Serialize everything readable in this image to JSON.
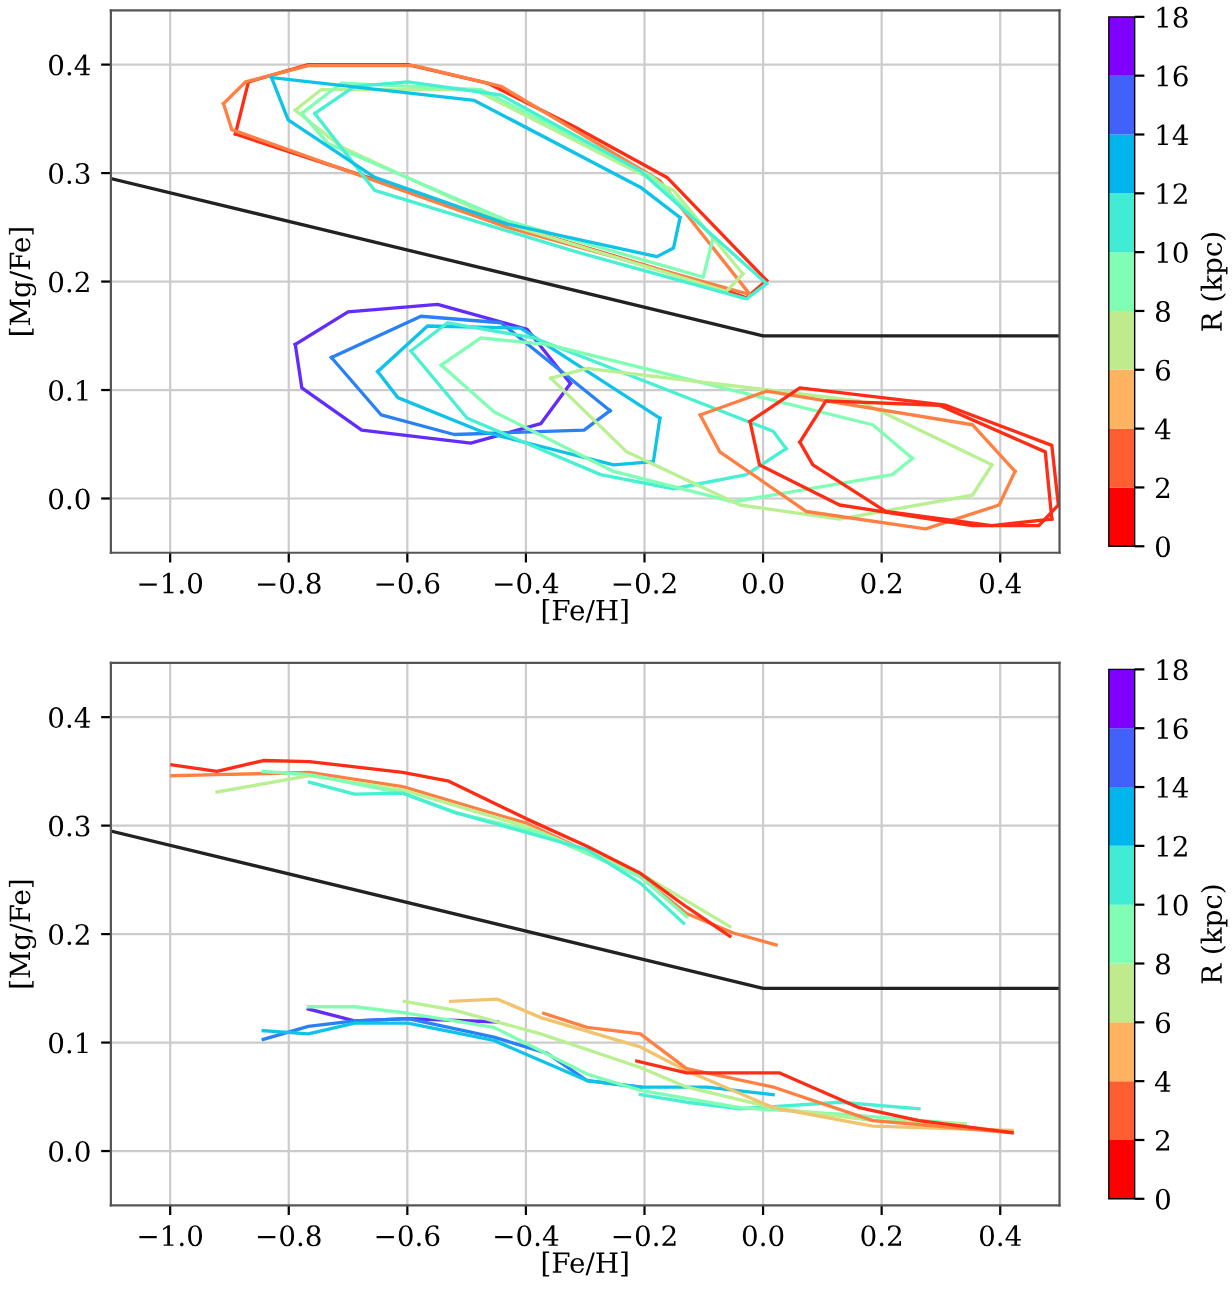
{
  "chart_data": [
    {
      "type": "line",
      "xlabel": "[Fe/H]",
      "ylabel": "[Mg/Fe]",
      "clabel": "R (kpc)",
      "xlim": [
        -1.1,
        0.5
      ],
      "ylim": [
        -0.05,
        0.45
      ],
      "xticks": [
        {
          "value": -1.0,
          "label": "−1.0"
        },
        {
          "value": -0.8,
          "label": "−0.8"
        },
        {
          "value": -0.6,
          "label": "−0.6"
        },
        {
          "value": -0.4,
          "label": "−0.4"
        },
        {
          "value": -0.2,
          "label": "−0.2"
        },
        {
          "value": 0.0,
          "label": "0.0"
        },
        {
          "value": 0.2,
          "label": "0.2"
        },
        {
          "value": 0.4,
          "label": "0.4"
        }
      ],
      "yticks": [
        {
          "value": 0.0,
          "label": "0.0"
        },
        0.1,
        0.2,
        0.3,
        0.4
      ],
      "clim": [
        0,
        18
      ],
      "cticks": [
        0,
        2,
        4,
        6,
        8,
        10,
        12,
        14,
        16,
        18
      ],
      "grid": true,
      "series": [
        {
          "color": "#ff2c16",
          "x": [
            -0.89,
            -0.868,
            -0.767,
            -0.599,
            -0.465,
            -0.319,
            -0.162,
            0.006
          ],
          "values": [
            0.336,
            0.384,
            0.4,
            0.4,
            0.383,
            0.343,
            0.296,
            0.201
          ]
        },
        {
          "color": "#ff2c16",
          "x": [
            -0.89,
            -0.633,
            -0.431,
            -0.095,
            -0.028,
            0.006
          ],
          "values": [
            0.336,
            0.29,
            0.253,
            0.198,
            0.185,
            0.201
          ]
        },
        {
          "color": "#ff8042",
          "x": [
            -0.91,
            -0.873,
            -0.767,
            -0.588,
            -0.442,
            -0.174,
            -0.022
          ],
          "values": [
            0.364,
            0.384,
            0.399,
            0.399,
            0.38,
            0.293,
            0.188
          ]
        },
        {
          "color": "#ff8042",
          "x": [
            -0.91,
            -0.896,
            -0.655,
            -0.431,
            -0.022
          ],
          "values": [
            0.364,
            0.34,
            0.293,
            0.25,
            0.188
          ]
        },
        {
          "color": "#b8f092",
          "x": [
            -0.789,
            -0.745,
            -0.487,
            -0.151,
            -0.034
          ],
          "values": [
            0.358,
            0.377,
            0.377,
            0.284,
            0.207
          ]
        },
        {
          "color": "#b8f092",
          "x": [
            -0.789,
            -0.711,
            -0.431,
            -0.062,
            -0.034
          ],
          "values": [
            0.358,
            0.324,
            0.253,
            0.191,
            0.207
          ]
        },
        {
          "color": "#80ffb4",
          "x": [
            -0.778,
            -0.711,
            -0.476,
            -0.185,
            -0.084
          ],
          "values": [
            0.355,
            0.383,
            0.377,
            0.296,
            0.241
          ]
        },
        {
          "color": "#80ffb4",
          "x": [
            -0.778,
            -0.733,
            -0.431,
            -0.101,
            -0.084
          ],
          "values": [
            0.355,
            0.327,
            0.256,
            0.204,
            0.241
          ]
        },
        {
          "color": "#47f0d1",
          "x": [
            -0.756,
            -0.689,
            -0.599,
            -0.442,
            -0.207,
            0.006
          ],
          "values": [
            0.355,
            0.38,
            0.384,
            0.372,
            0.302,
            0.198
          ]
        },
        {
          "color": "#47f0d1",
          "x": [
            -0.756,
            -0.655,
            -0.319,
            -0.028,
            0.006
          ],
          "values": [
            0.355,
            0.284,
            0.228,
            0.184,
            0.198
          ]
        },
        {
          "color": "#0ec3e7",
          "x": [
            -0.829,
            -0.487,
            -0.207,
            -0.14
          ],
          "values": [
            0.388,
            0.367,
            0.287,
            0.259
          ]
        },
        {
          "color": "#0ec3e7",
          "x": [
            -0.829,
            -0.801,
            -0.655,
            -0.431,
            -0.179,
            -0.151,
            -0.14
          ],
          "values": [
            0.388,
            0.349,
            0.296,
            0.253,
            0.223,
            0.231,
            0.259
          ]
        },
        {
          "color": "#632cfe",
          "x": [
            -0.789,
            -0.7,
            -0.549,
            -0.398,
            -0.325
          ],
          "values": [
            0.142,
            0.172,
            0.179,
            0.156,
            0.106
          ]
        },
        {
          "color": "#632cfe",
          "x": [
            -0.789,
            -0.778,
            -0.677,
            -0.493,
            -0.375,
            -0.325
          ],
          "values": [
            0.142,
            0.102,
            0.063,
            0.051,
            0.069,
            0.106
          ]
        },
        {
          "color": "#2a80f6",
          "x": [
            -0.728,
            -0.577,
            -0.442,
            -0.258
          ],
          "values": [
            0.13,
            0.168,
            0.162,
            0.081
          ]
        },
        {
          "color": "#2a80f6",
          "x": [
            -0.728,
            -0.644,
            -0.521,
            -0.302,
            -0.258
          ],
          "values": [
            0.13,
            0.077,
            0.059,
            0.063,
            0.081
          ]
        },
        {
          "color": "#0ec3e7",
          "x": [
            -0.65,
            -0.566,
            -0.409,
            -0.174
          ],
          "values": [
            0.117,
            0.159,
            0.157,
            0.074
          ]
        },
        {
          "color": "#0ec3e7",
          "x": [
            -0.65,
            -0.616,
            -0.476,
            -0.252,
            -0.185,
            -0.174
          ],
          "values": [
            0.117,
            0.093,
            0.062,
            0.031,
            0.034,
            0.074
          ]
        },
        {
          "color": "#47f0d1",
          "x": [
            -0.594,
            -0.532,
            -0.386,
            0.017,
            0.039
          ],
          "values": [
            0.136,
            0.162,
            0.148,
            0.062,
            0.046
          ]
        },
        {
          "color": "#47f0d1",
          "x": [
            -0.594,
            -0.499,
            -0.274,
            -0.151,
            -0.028,
            0.039
          ],
          "values": [
            0.136,
            0.074,
            0.022,
            0.009,
            0.022,
            0.046
          ]
        },
        {
          "color": "#80ffb4",
          "x": [
            -0.543,
            -0.476,
            -0.364,
            0.185,
            0.252
          ],
          "values": [
            0.123,
            0.148,
            0.142,
            0.068,
            0.037
          ]
        },
        {
          "color": "#80ffb4",
          "x": [
            -0.543,
            -0.454,
            -0.252,
            -0.05,
            0.218,
            0.252
          ],
          "values": [
            0.123,
            0.08,
            0.025,
            -0.003,
            0.022,
            0.037
          ]
        },
        {
          "color": "#b8f092",
          "x": [
            -0.358,
            -0.297,
            0.162,
            0.386
          ],
          "values": [
            0.111,
            0.12,
            0.09,
            0.031
          ]
        },
        {
          "color": "#b8f092",
          "x": [
            -0.358,
            -0.23,
            -0.039,
            0.129,
            0.353,
            0.386
          ],
          "values": [
            0.111,
            0.043,
            -0.006,
            -0.019,
            0.003,
            0.031
          ]
        },
        {
          "color": "#ff8042",
          "x": [
            -0.106,
            0.006,
            0.353,
            0.425
          ],
          "values": [
            0.077,
            0.099,
            0.068,
            0.025
          ]
        },
        {
          "color": "#ff8042",
          "x": [
            -0.106,
            -0.073,
            0.073,
            0.274,
            0.398,
            0.425
          ],
          "values": [
            0.077,
            0.043,
            -0.012,
            -0.028,
            -0.006,
            0.025
          ]
        },
        {
          "color": "#ff2c16",
          "x": [
            -0.022,
            0.062,
            0.308,
            0.487,
            0.498
          ],
          "values": [
            0.071,
            0.102,
            0.086,
            0.049,
            -0.006
          ]
        },
        {
          "color": "#ff2c16",
          "x": [
            -0.022,
            -0.006,
            0.129,
            0.353,
            0.465,
            0.498
          ],
          "values": [
            0.071,
            0.031,
            -0.006,
            -0.025,
            -0.025,
            -0.006
          ]
        },
        {
          "color": "#ff2c16",
          "x": [
            0.062,
            0.106,
            0.297,
            0.476,
            0.487
          ],
          "values": [
            0.052,
            0.09,
            0.086,
            0.043,
            -0.019
          ]
        },
        {
          "color": "#ff2c16",
          "x": [
            0.062,
            0.084,
            0.207,
            0.386,
            0.487
          ],
          "values": [
            0.052,
            0.031,
            -0.012,
            -0.025,
            -0.019
          ]
        },
        {
          "color": "#222222",
          "x": [
            -1.1,
            0.0,
            0.5
          ],
          "values": [
            0.295,
            0.15,
            0.15
          ]
        }
      ]
    },
    {
      "type": "line",
      "xlabel": "[Fe/H]",
      "ylabel": "[Mg/Fe]",
      "clabel": "R (kpc)",
      "xlim": [
        -1.1,
        0.5
      ],
      "ylim": [
        -0.05,
        0.45
      ],
      "xticks": [
        {
          "value": -1.0,
          "label": "−1.0"
        },
        {
          "value": -0.8,
          "label": "−0.8"
        },
        {
          "value": -0.6,
          "label": "−0.6"
        },
        {
          "value": -0.4,
          "label": "−0.4"
        },
        {
          "value": -0.2,
          "label": "−0.2"
        },
        {
          "value": 0.0,
          "label": "0.0"
        },
        {
          "value": 0.2,
          "label": "0.2"
        },
        {
          "value": 0.4,
          "label": "0.4"
        }
      ],
      "yticks": [
        {
          "value": 0.0,
          "label": "0.0"
        },
        0.1,
        0.2,
        0.3,
        0.4
      ],
      "clim": [
        0,
        18
      ],
      "cticks": [
        0,
        2,
        4,
        6,
        8,
        10,
        12,
        14,
        16,
        18
      ],
      "grid": true,
      "series": [
        {
          "color": "#ff8042",
          "x": [
            -0.997,
            -0.921,
            -0.765,
            -0.608,
            -0.398,
            -0.207,
            -0.129,
            -0.05,
            0.022
          ],
          "values": [
            0.346,
            0.347,
            0.349,
            0.336,
            0.302,
            0.253,
            0.219,
            0.201,
            0.19
          ]
        },
        {
          "color": "#b8f092",
          "x": [
            -0.921,
            -0.765,
            -0.608,
            -0.398,
            -0.207,
            -0.056
          ],
          "values": [
            0.331,
            0.346,
            0.333,
            0.299,
            0.256,
            0.207
          ]
        },
        {
          "color": "#80ffb4",
          "x": [
            -0.843,
            -0.765,
            -0.608,
            -0.519,
            -0.375,
            -0.207,
            -0.129
          ],
          "values": [
            0.35,
            0.347,
            0.33,
            0.312,
            0.293,
            0.253,
            0.216
          ]
        },
        {
          "color": "#47f0d1",
          "x": [
            -0.765,
            -0.689,
            -0.608,
            -0.519,
            -0.375,
            -0.297,
            -0.207,
            -0.134
          ],
          "values": [
            0.34,
            0.329,
            0.33,
            0.312,
            0.29,
            0.278,
            0.247,
            0.21
          ]
        },
        {
          "color": "#ff2c16",
          "x": [
            -0.997,
            -0.921,
            -0.843,
            -0.765,
            -0.608,
            -0.53,
            -0.398,
            -0.297,
            -0.207,
            -0.129,
            -0.056
          ],
          "values": [
            0.356,
            0.35,
            0.36,
            0.359,
            0.349,
            0.341,
            0.306,
            0.281,
            0.256,
            0.225,
            0.198
          ]
        },
        {
          "color": "#632cfe",
          "x": [
            -0.767,
            -0.689,
            -0.599,
            -0.448
          ],
          "values": [
            0.131,
            0.12,
            0.122,
            0.119
          ]
        },
        {
          "color": "#2a80f6",
          "x": [
            -0.843,
            -0.767,
            -0.689,
            -0.599,
            -0.454,
            -0.364,
            -0.297,
            -0.207
          ],
          "values": [
            0.103,
            0.115,
            0.12,
            0.122,
            0.105,
            0.09,
            0.065,
            0.059
          ]
        },
        {
          "color": "#0ec3e7",
          "x": [
            -0.843,
            -0.767,
            -0.689,
            -0.599,
            -0.454,
            -0.297,
            -0.207,
            -0.095,
            0.017
          ],
          "values": [
            0.111,
            0.108,
            0.118,
            0.118,
            0.102,
            0.065,
            0.059,
            0.059,
            0.052
          ]
        },
        {
          "color": "#47f0d1",
          "x": [
            -0.207,
            -0.129,
            -0.039,
            0.129,
            0.263
          ],
          "values": [
            0.052,
            0.045,
            0.039,
            0.045,
            0.039
          ]
        },
        {
          "color": "#80ffb4",
          "x": [
            -0.767,
            -0.689,
            -0.599,
            -0.454,
            -0.297,
            -0.207,
            -0.039,
            0.129,
            0.341
          ],
          "values": [
            0.133,
            0.133,
            0.127,
            0.114,
            0.071,
            0.056,
            0.04,
            0.034,
            0.025
          ]
        },
        {
          "color": "#b8f092",
          "x": [
            -0.605,
            -0.521,
            -0.375,
            -0.207,
            -0.129,
            0.017,
            0.185,
            0.341
          ],
          "values": [
            0.138,
            0.13,
            0.108,
            0.077,
            0.059,
            0.04,
            0.028,
            0.025
          ]
        },
        {
          "color": "#f1c36c",
          "x": [
            -0.527,
            -0.448,
            -0.375,
            -0.207,
            -0.129,
            0.017,
            0.185,
            0.42
          ],
          "values": [
            0.138,
            0.14,
            0.123,
            0.096,
            0.074,
            0.04,
            0.023,
            0.019
          ]
        },
        {
          "color": "#ff8042",
          "x": [
            -0.37,
            -0.297,
            -0.207,
            -0.129,
            0.017,
            0.185,
            0.42
          ],
          "values": [
            0.127,
            0.114,
            0.108,
            0.076,
            0.059,
            0.028,
            0.017
          ]
        },
        {
          "color": "#ff2c16",
          "x": [
            -0.213,
            -0.129,
            0.028,
            0.162,
            0.263,
            0.42
          ],
          "values": [
            0.083,
            0.072,
            0.072,
            0.04,
            0.028,
            0.017
          ]
        },
        {
          "color": "#222222",
          "x": [
            -1.1,
            0.0,
            0.5
          ],
          "values": [
            0.295,
            0.15,
            0.15
          ]
        }
      ]
    }
  ]
}
